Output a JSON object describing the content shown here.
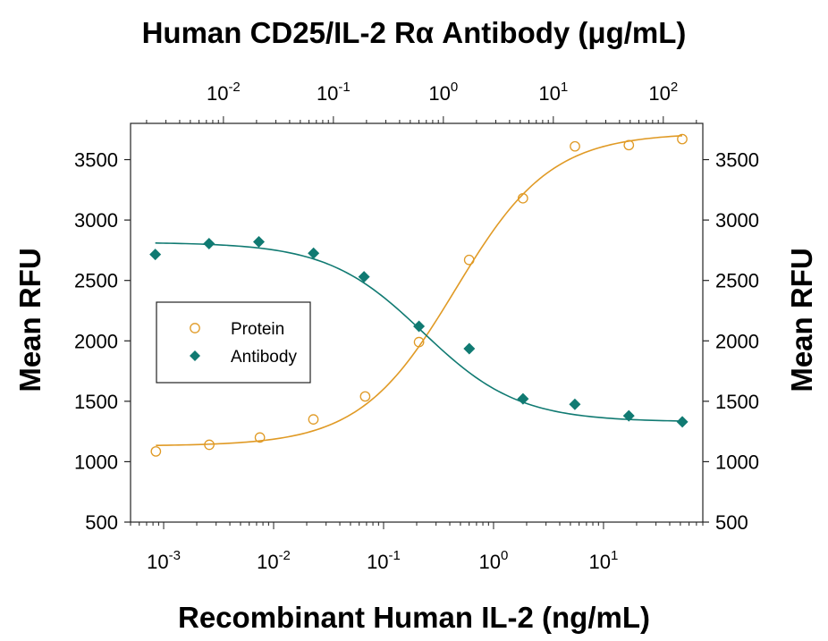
{
  "chart_data": {
    "type": "scatter",
    "title": "Human CD25/IL-2 Rα Antibody (μg/mL)",
    "xlabel": "Recombinant Human IL-2 (ng/mL)",
    "ylabel_left": "Mean RFU",
    "ylabel_right": "Mean RFU",
    "x_scale": "log",
    "xlim": [
      0.0005,
      80
    ],
    "ylim": [
      500,
      3800
    ],
    "y_ticks": [
      500,
      1000,
      1500,
      2000,
      2500,
      3000,
      3500
    ],
    "x_bottom_ticks": [
      {
        "value": 0.001,
        "base": "10",
        "exp": "-3"
      },
      {
        "value": 0.01,
        "base": "10",
        "exp": "-2"
      },
      {
        "value": 0.1,
        "base": "10",
        "exp": "-1"
      },
      {
        "value": 1,
        "base": "10",
        "exp": "0"
      },
      {
        "value": 10,
        "base": "10",
        "exp": "1"
      }
    ],
    "top_axis_factor": 2.86,
    "x_top_ticks": [
      {
        "value": 0.01,
        "base": "10",
        "exp": "-2"
      },
      {
        "value": 0.1,
        "base": "10",
        "exp": "-1"
      },
      {
        "value": 1,
        "base": "10",
        "exp": "0"
      },
      {
        "value": 10,
        "base": "10",
        "exp": "1"
      },
      {
        "value": 100,
        "base": "10",
        "exp": "2"
      }
    ],
    "legend_position": "center-left",
    "series": [
      {
        "name": "Protein",
        "axis": "bottom",
        "marker": "open-circle",
        "color": "#e09a25",
        "x": [
          0.00085,
          0.0026,
          0.0075,
          0.023,
          0.068,
          0.21,
          0.6,
          1.85,
          5.5,
          17,
          52
        ],
        "y": [
          1085,
          1140,
          1200,
          1350,
          1540,
          1990,
          2670,
          3180,
          3610,
          3620,
          3670
        ],
        "fit": {
          "bottom": 1130,
          "top": 3720,
          "ec50": 0.45,
          "hill": 1.0
        }
      },
      {
        "name": "Antibody",
        "axis": "top",
        "marker": "filled-diamond",
        "color": "#107a72",
        "x": [
          0.0024,
          0.0074,
          0.021,
          0.066,
          0.19,
          0.6,
          1.72,
          5.3,
          15.7,
          48.6,
          149
        ],
        "y": [
          2715,
          2805,
          2820,
          2725,
          2530,
          2120,
          1935,
          1520,
          1475,
          1380,
          1330
        ],
        "fit": {
          "bottom": 1330,
          "top": 2815,
          "ec50": 0.65,
          "hill": -1.0
        }
      }
    ]
  }
}
